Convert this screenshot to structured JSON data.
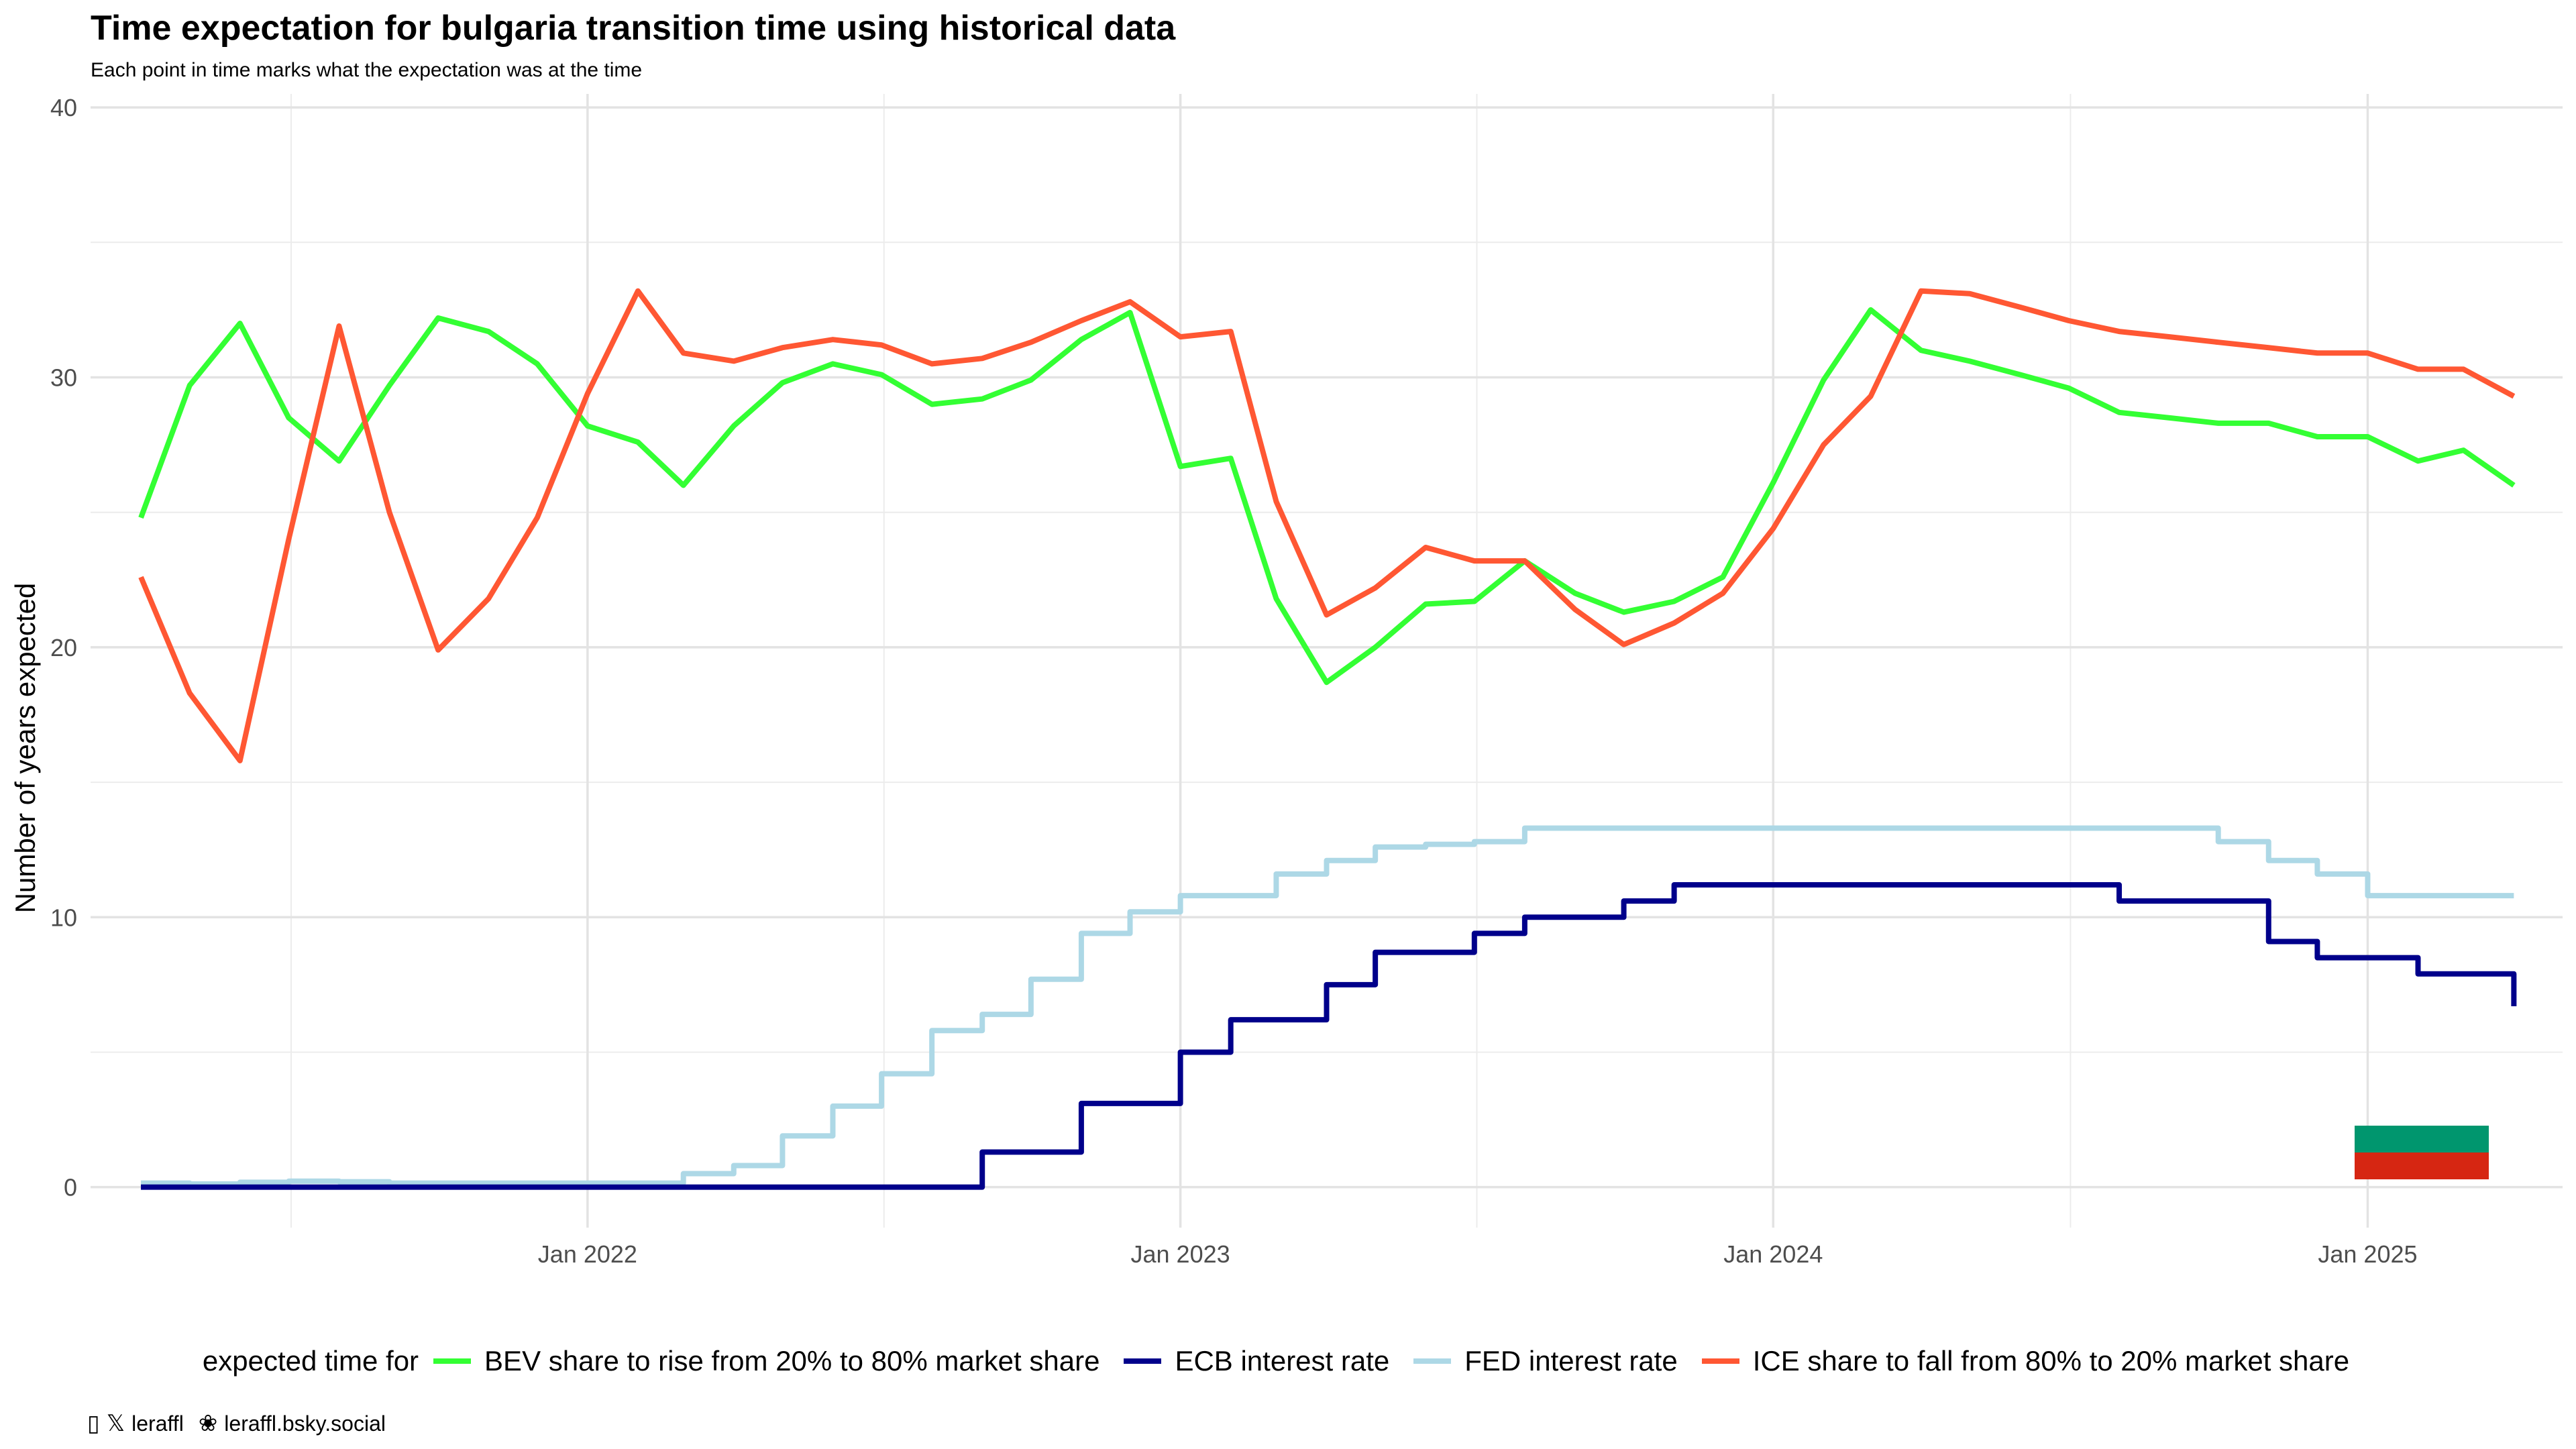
{
  "title": "Time expectation for bulgaria transition time using historical data",
  "subtitle": "Each point in time marks what the expectation was at the time",
  "legend_title": "expected time for",
  "credits": {
    "handle_icon": "person-glyph-icon",
    "x_icon": "x-logo-icon",
    "handle": "leraffl",
    "bsky_icon": "butterfly-icon",
    "bsky": "leraffl.bsky.social"
  },
  "flag": {
    "name": "bulgaria-flag",
    "colors": [
      "#ffffff",
      "#00966E",
      "#D62612"
    ]
  },
  "chart_data": {
    "type": "line",
    "title": "Time expectation for bulgaria transition time using historical data",
    "subtitle": "Each point in time marks what the expectation was at the time",
    "xlabel": "",
    "ylabel": "Number of years expected",
    "ylim": [
      -1.5,
      40.5
    ],
    "xlim": [
      "2021-03-01",
      "2025-05-01"
    ],
    "x_ticks": [
      "2022-01-01",
      "2023-01-01",
      "2024-01-01",
      "2025-01-01"
    ],
    "x_tick_labels": [
      "Jan 2022",
      "Jan 2023",
      "Jan 2024",
      "Jan 2025"
    ],
    "y_ticks": [
      0,
      10,
      20,
      30,
      40
    ],
    "y_tick_labels": [
      "0",
      "10",
      "20",
      "30",
      "40"
    ],
    "grid": true,
    "legend_position": "bottom",
    "series": [
      {
        "name": "BEV share to rise from 20% to 80% market share",
        "color": "#33ff33",
        "style": "line",
        "x": [
          "2021-04-01",
          "2021-05-01",
          "2021-06-01",
          "2021-07-01",
          "2021-08-01",
          "2021-09-01",
          "2021-10-01",
          "2021-11-01",
          "2021-12-01",
          "2022-01-01",
          "2022-02-01",
          "2022-03-01",
          "2022-04-01",
          "2022-05-01",
          "2022-06-01",
          "2022-07-01",
          "2022-08-01",
          "2022-09-01",
          "2022-10-01",
          "2022-11-01",
          "2022-12-01",
          "2023-01-01",
          "2023-02-01",
          "2023-03-01",
          "2023-04-01",
          "2023-05-01",
          "2023-06-01",
          "2023-07-01",
          "2023-08-01",
          "2023-09-01",
          "2023-10-01",
          "2023-11-01",
          "2023-12-01",
          "2024-01-01",
          "2024-02-01",
          "2024-03-01",
          "2024-04-01",
          "2024-05-01",
          "2024-06-01",
          "2024-07-01",
          "2024-08-01",
          "2024-09-01",
          "2024-10-01",
          "2024-11-01",
          "2024-12-01",
          "2025-01-01",
          "2025-02-01",
          "2025-03-01",
          "2025-04-01"
        ],
        "y": [
          24.8,
          29.7,
          32.0,
          28.5,
          26.9,
          29.7,
          32.2,
          31.7,
          30.5,
          28.2,
          27.6,
          26.0,
          28.2,
          29.8,
          30.5,
          30.1,
          29.0,
          29.2,
          29.9,
          31.4,
          32.4,
          26.7,
          27.0,
          21.8,
          18.7,
          20.0,
          21.6,
          21.7,
          23.2,
          22.0,
          21.3,
          21.7,
          22.6,
          26.1,
          29.9,
          32.5,
          31.0,
          30.6,
          30.1,
          29.6,
          28.7,
          28.5,
          28.3,
          28.3,
          27.8,
          27.8,
          26.9,
          27.3,
          26.0
        ]
      },
      {
        "name": "ECB interest rate",
        "color": "#00008b",
        "style": "step",
        "x": [
          "2021-04-01",
          "2021-05-01",
          "2021-06-01",
          "2021-07-01",
          "2021-08-01",
          "2021-09-01",
          "2021-10-01",
          "2021-11-01",
          "2021-12-01",
          "2022-01-01",
          "2022-02-01",
          "2022-03-01",
          "2022-04-01",
          "2022-05-01",
          "2022-06-01",
          "2022-07-01",
          "2022-08-01",
          "2022-09-01",
          "2022-10-01",
          "2022-11-01",
          "2022-12-01",
          "2023-01-01",
          "2023-02-01",
          "2023-03-01",
          "2023-04-01",
          "2023-05-01",
          "2023-06-01",
          "2023-07-01",
          "2023-08-01",
          "2023-09-01",
          "2023-10-01",
          "2023-11-01",
          "2023-12-01",
          "2024-01-01",
          "2024-02-01",
          "2024-03-01",
          "2024-04-01",
          "2024-05-01",
          "2024-06-01",
          "2024-07-01",
          "2024-08-01",
          "2024-09-01",
          "2024-10-01",
          "2024-11-01",
          "2024-12-01",
          "2025-01-01",
          "2025-02-01",
          "2025-03-01",
          "2025-04-01"
        ],
        "y": [
          0,
          0,
          0,
          0,
          0,
          0,
          0,
          0,
          0,
          0,
          0,
          0,
          0,
          0,
          0,
          0,
          0,
          1.3,
          1.3,
          3.1,
          3.1,
          5.0,
          6.2,
          6.2,
          7.5,
          8.7,
          8.7,
          9.4,
          10.0,
          10.0,
          10.6,
          11.2,
          11.2,
          11.2,
          11.2,
          11.2,
          11.2,
          11.2,
          11.2,
          11.2,
          10.6,
          10.6,
          10.6,
          9.1,
          8.5,
          8.5,
          7.9,
          7.9,
          7.2
        ],
        "last_y": 6.7
      },
      {
        "name": "FED interest rate",
        "color": "#add8e6",
        "style": "step",
        "x": [
          "2021-04-01",
          "2021-05-01",
          "2021-06-01",
          "2021-07-01",
          "2021-08-01",
          "2021-09-01",
          "2021-10-01",
          "2021-11-01",
          "2021-12-01",
          "2022-01-01",
          "2022-02-01",
          "2022-03-01",
          "2022-04-01",
          "2022-05-01",
          "2022-06-01",
          "2022-07-01",
          "2022-08-01",
          "2022-09-01",
          "2022-10-01",
          "2022-11-01",
          "2022-12-01",
          "2023-01-01",
          "2023-02-01",
          "2023-03-01",
          "2023-04-01",
          "2023-05-01",
          "2023-06-01",
          "2023-07-01",
          "2023-08-01",
          "2023-09-01",
          "2023-10-01",
          "2023-11-01",
          "2023-12-01",
          "2024-01-01",
          "2024-02-01",
          "2024-03-01",
          "2024-04-01",
          "2024-05-01",
          "2024-06-01",
          "2024-07-01",
          "2024-08-01",
          "2024-09-01",
          "2024-10-01",
          "2024-11-01",
          "2024-12-01",
          "2025-01-01",
          "2025-02-01",
          "2025-03-01",
          "2025-04-01"
        ],
        "y": [
          0.15,
          0.12,
          0.18,
          0.22,
          0.2,
          0.15,
          0.15,
          0.15,
          0.15,
          0.15,
          0.15,
          0.5,
          0.8,
          1.9,
          3.0,
          4.2,
          5.8,
          6.4,
          7.7,
          9.4,
          10.2,
          10.8,
          10.8,
          11.6,
          12.1,
          12.6,
          12.7,
          12.8,
          13.3,
          13.3,
          13.3,
          13.3,
          13.3,
          13.3,
          13.3,
          13.3,
          13.3,
          13.3,
          13.3,
          13.3,
          13.3,
          13.3,
          12.8,
          12.1,
          11.6,
          10.8,
          10.8,
          10.8,
          10.8
        ]
      },
      {
        "name": "ICE share to fall from 80% to 20% market share",
        "color": "#ff5733",
        "style": "line",
        "x": [
          "2021-04-01",
          "2021-05-01",
          "2021-06-01",
          "2021-07-01",
          "2021-08-01",
          "2021-09-01",
          "2021-10-01",
          "2021-11-01",
          "2021-12-01",
          "2022-01-01",
          "2022-02-01",
          "2022-03-01",
          "2022-04-01",
          "2022-05-01",
          "2022-06-01",
          "2022-07-01",
          "2022-08-01",
          "2022-09-01",
          "2022-10-01",
          "2022-11-01",
          "2022-12-01",
          "2023-01-01",
          "2023-02-01",
          "2023-03-01",
          "2023-04-01",
          "2023-05-01",
          "2023-06-01",
          "2023-07-01",
          "2023-08-01",
          "2023-09-01",
          "2023-10-01",
          "2023-11-01",
          "2023-12-01",
          "2024-01-01",
          "2024-02-01",
          "2024-03-01",
          "2024-04-01",
          "2024-05-01",
          "2024-06-01",
          "2024-07-01",
          "2024-08-01",
          "2024-09-01",
          "2024-10-01",
          "2024-11-01",
          "2024-12-01",
          "2025-01-01",
          "2025-02-01",
          "2025-03-01",
          "2025-04-01"
        ],
        "y": [
          22.6,
          18.3,
          15.8,
          24.0,
          31.9,
          25.0,
          19.9,
          21.8,
          24.8,
          29.4,
          33.2,
          30.9,
          30.6,
          31.1,
          31.4,
          31.2,
          30.5,
          30.7,
          31.3,
          32.1,
          32.8,
          31.5,
          31.7,
          25.4,
          21.2,
          22.2,
          23.7,
          23.2,
          23.2,
          21.4,
          20.1,
          20.9,
          22.0,
          24.4,
          27.5,
          29.3,
          33.2,
          33.1,
          32.6,
          32.1,
          31.7,
          31.5,
          31.3,
          31.1,
          30.9,
          30.9,
          30.3,
          30.3,
          29.3
        ]
      }
    ]
  }
}
